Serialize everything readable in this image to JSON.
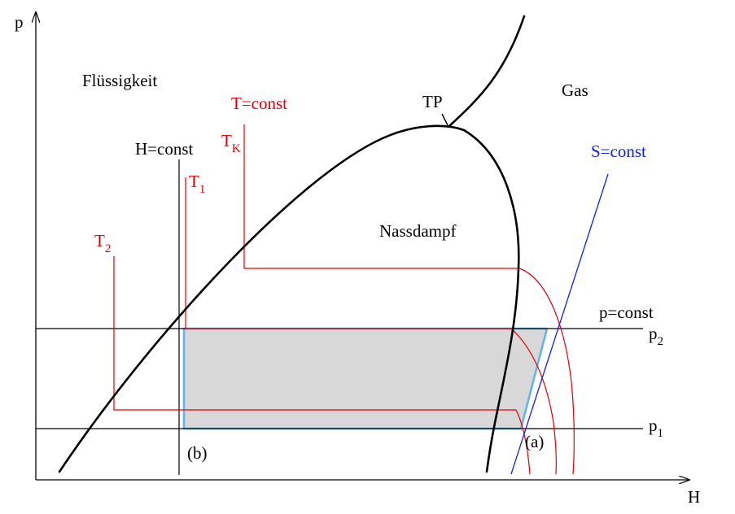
{
  "axes": {
    "y_label": "p",
    "x_label": "H"
  },
  "regions": {
    "liquid": "Flüssigkeit",
    "gas": "Gas",
    "wet_steam": "Nassdampf",
    "turning_point": "TP"
  },
  "isotherms": {
    "title": "T=const",
    "tk_main": "T",
    "tk_sub": "K",
    "t1_main": "T",
    "t1_sub": "1",
    "t2_main": "T",
    "t2_sub": "2"
  },
  "isenthalp": {
    "title": "H=const",
    "point_b": "(b)"
  },
  "isobars": {
    "title": "p=const",
    "p1_main": "p",
    "p1_sub": "1",
    "p2_main": "p",
    "p2_sub": "2"
  },
  "isentrope": {
    "title": "S=const",
    "point_a": "(a)"
  },
  "colors": {
    "black": "#000000",
    "red": "#e0000a",
    "blue": "#1020e0",
    "cycle_fill": "#d8d8d8",
    "cycle_edge": "#5fb4f0"
  }
}
